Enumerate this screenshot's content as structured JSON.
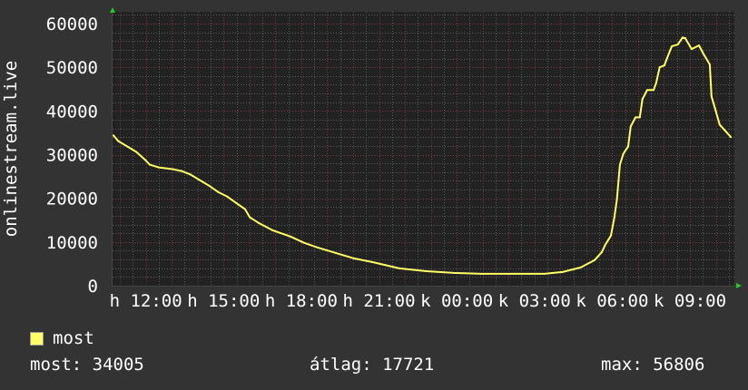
{
  "chart_data": {
    "type": "line",
    "ylabel": "onlinestream.live",
    "ylim": [
      0,
      62700
    ],
    "yticks": [
      0,
      10000,
      20000,
      30000,
      40000,
      50000,
      60000
    ],
    "ytick_labels": [
      "0",
      "10000",
      "20000",
      "30000",
      "40000",
      "50000",
      "60000"
    ],
    "xlim": [
      "10:43",
      "10:40"
    ],
    "xtick_labels": [
      "h 12:00",
      "h 15:00",
      "h 18:00",
      "h 21:00",
      "k 00:00",
      "k 03:00",
      "k 06:00",
      "k 09:00"
    ],
    "xtick_times": [
      "12:00",
      "15:00",
      "18:00",
      "21:00",
      "00:00",
      "03:00",
      "06:00",
      "09:00"
    ],
    "grid": true,
    "colors": {
      "background": "#333333",
      "plot": "#222222",
      "line": "#ffff66",
      "major_grid": "#7a3a3a",
      "minor_grid": "#5a5a5a",
      "arrow": "#22cc22"
    },
    "series": [
      {
        "name": "most",
        "color": "#ffff66",
        "points": [
          [
            "10:45",
            34400
          ],
          [
            "10:56",
            33125
          ],
          [
            "11:17",
            31875
          ],
          [
            "11:38",
            30625
          ],
          [
            "11:59",
            28750
          ],
          [
            "12:09",
            27700
          ],
          [
            "12:30",
            27080
          ],
          [
            "13:02",
            26670
          ],
          [
            "13:23",
            26250
          ],
          [
            "13:44",
            25420
          ],
          [
            "14:05",
            24170
          ],
          [
            "14:26",
            22920
          ],
          [
            "14:47",
            21460
          ],
          [
            "15:08",
            20420
          ],
          [
            "15:29",
            18960
          ],
          [
            "15:50",
            17500
          ],
          [
            "16:01",
            15630
          ],
          [
            "16:21",
            14380
          ],
          [
            "16:53",
            12710
          ],
          [
            "17:35",
            11250
          ],
          [
            "18:07",
            9790
          ],
          [
            "18:38",
            8750
          ],
          [
            "19:20",
            7500
          ],
          [
            "20:02",
            6250
          ],
          [
            "20:44",
            5420
          ],
          [
            "21:47",
            3960
          ],
          [
            "22:50",
            3330
          ],
          [
            "23:53",
            2920
          ],
          [
            "00:56",
            2710
          ],
          [
            "01:59",
            2710
          ],
          [
            "03:23",
            2710
          ],
          [
            "04:05",
            3130
          ],
          [
            "04:47",
            4170
          ],
          [
            "05:19",
            5830
          ],
          [
            "05:36",
            7710
          ],
          [
            "05:44",
            9380
          ],
          [
            "05:57",
            11460
          ],
          [
            "06:05",
            15630
          ],
          [
            "06:11",
            19790
          ],
          [
            "06:18",
            27710
          ],
          [
            "06:26",
            30210
          ],
          [
            "06:37",
            31880
          ],
          [
            "06:43",
            36460
          ],
          [
            "06:54",
            38540
          ],
          [
            "07:04",
            38540
          ],
          [
            "07:10",
            42710
          ],
          [
            "07:21",
            44790
          ],
          [
            "07:36",
            44790
          ],
          [
            "07:42",
            46460
          ],
          [
            "07:50",
            50000
          ],
          [
            "08:01",
            50420
          ],
          [
            "08:07",
            52080
          ],
          [
            "08:18",
            54790
          ],
          [
            "08:32",
            55210
          ],
          [
            "08:43",
            56806
          ],
          [
            "08:49",
            56670
          ],
          [
            "09:04",
            54170
          ],
          [
            "09:21",
            55000
          ],
          [
            "09:31",
            53130
          ],
          [
            "09:46",
            50630
          ],
          [
            "09:50",
            43330
          ],
          [
            "09:58",
            40630
          ],
          [
            "10:09",
            36880
          ],
          [
            "10:35",
            34005
          ]
        ]
      }
    ]
  },
  "legend": {
    "label": "most",
    "color": "#ffff66"
  },
  "stats": {
    "current": "most: 34005",
    "average": "átlag: 17721",
    "max": "max: 56806"
  }
}
